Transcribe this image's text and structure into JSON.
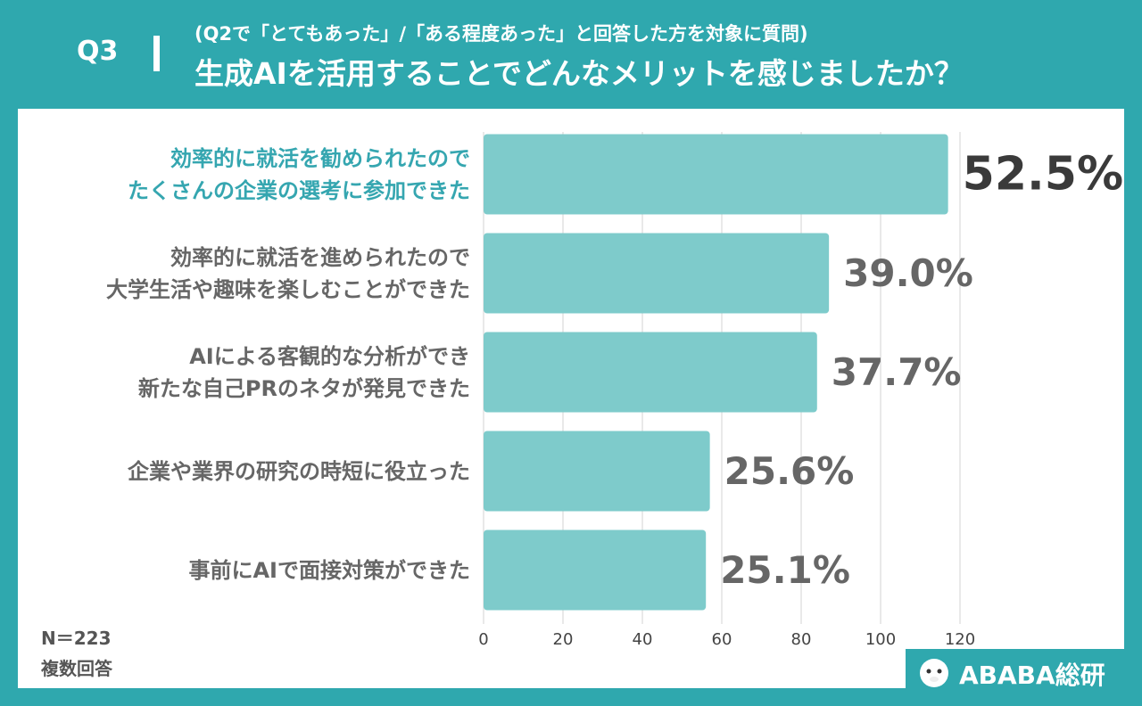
{
  "header": {
    "question": "Q3",
    "subtitle": "(Q2で「とてもあった」/「ある程度あった」と回答した方を対象に質問)",
    "title": "生成AIを活用することでどんなメリットを感じましたか？"
  },
  "chart_data": {
    "type": "barh",
    "categories": [
      "効率的に就活を勧められたので\nたくさんの企業の選考に参加できた",
      "効率的に就活を進められたので\n大学生活や趣味を楽しむことができた",
      "AIによる客観的な分析ができ\n新たな自己PRのネタが発見できた",
      "企業や業界の研究の時短に役立った",
      "事前にAIで面接対策ができた"
    ],
    "values": [
      117,
      87,
      84,
      57,
      56
    ],
    "value_labels": [
      "52.5%",
      "39.0%",
      "37.7%",
      "25.6%",
      "25.1%"
    ],
    "color": "#7ecbcb",
    "highlight": [
      0
    ],
    "highlight_color": "#35a6b0",
    "xlim": [
      0,
      120
    ],
    "xticks": [
      0,
      20,
      40,
      60,
      80,
      100,
      120
    ],
    "grid": true
  },
  "notes": [
    "N＝223",
    "複数回答"
  ],
  "logo": "ABABA総研"
}
